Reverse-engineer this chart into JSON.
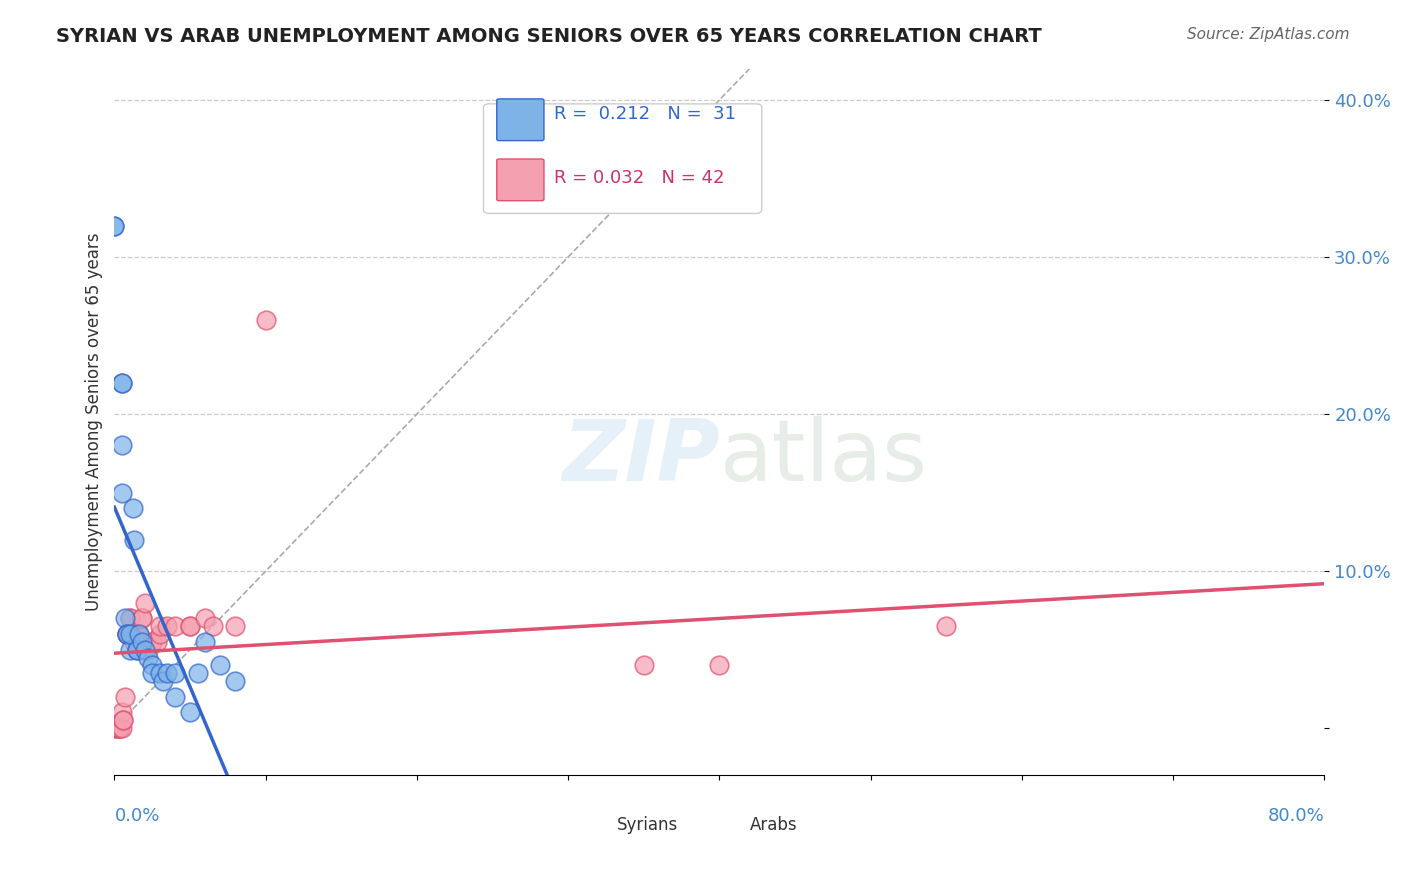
{
  "title": "SYRIAN VS ARAB UNEMPLOYMENT AMONG SENIORS OVER 65 YEARS CORRELATION CHART",
  "source": "Source: ZipAtlas.com",
  "ylabel": "Unemployment Among Seniors over 65 years",
  "ytick_values": [
    0,
    0.1,
    0.2,
    0.3,
    0.4
  ],
  "xlim": [
    0,
    0.8
  ],
  "ylim": [
    -0.03,
    0.42
  ],
  "syrian_R": "0.212",
  "syrian_N": "31",
  "arab_R": "0.032",
  "arab_N": "42",
  "syrian_color": "#7EB3E8",
  "arab_color": "#F4A0B0",
  "syrian_line_color": "#3366CC",
  "arab_line_color": "#E05070",
  "diagonal_color": "#AAAAAA",
  "syrians_x": [
    0.0,
    0.0,
    0.005,
    0.005,
    0.005,
    0.005,
    0.007,
    0.008,
    0.008,
    0.01,
    0.01,
    0.012,
    0.013,
    0.015,
    0.015,
    0.016,
    0.018,
    0.02,
    0.022,
    0.025,
    0.025,
    0.03,
    0.032,
    0.035,
    0.04,
    0.04,
    0.05,
    0.055,
    0.06,
    0.07,
    0.08
  ],
  "syrians_y": [
    0.32,
    0.32,
    0.22,
    0.22,
    0.18,
    0.15,
    0.07,
    0.06,
    0.06,
    0.05,
    0.06,
    0.14,
    0.12,
    0.05,
    0.05,
    0.06,
    0.055,
    0.05,
    0.045,
    0.04,
    0.035,
    0.035,
    0.03,
    0.035,
    0.035,
    0.02,
    0.01,
    0.035,
    0.055,
    0.04,
    0.03
  ],
  "arabs_x": [
    0.0,
    0.0,
    0.002,
    0.003,
    0.003,
    0.004,
    0.005,
    0.005,
    0.006,
    0.006,
    0.007,
    0.008,
    0.008,
    0.009,
    0.01,
    0.01,
    0.012,
    0.013,
    0.015,
    0.015,
    0.016,
    0.017,
    0.018,
    0.018,
    0.02,
    0.022,
    0.025,
    0.025,
    0.028,
    0.03,
    0.03,
    0.035,
    0.04,
    0.05,
    0.05,
    0.06,
    0.065,
    0.08,
    0.1,
    0.35,
    0.4,
    0.55
  ],
  "arabs_y": [
    0.0,
    0.0,
    0.0,
    0.0,
    0.0,
    0.0,
    0.0,
    0.01,
    0.005,
    0.005,
    0.02,
    0.06,
    0.06,
    0.06,
    0.07,
    0.07,
    0.06,
    0.055,
    0.06,
    0.055,
    0.06,
    0.05,
    0.07,
    0.07,
    0.08,
    0.05,
    0.055,
    0.055,
    0.055,
    0.06,
    0.065,
    0.065,
    0.065,
    0.065,
    0.065,
    0.07,
    0.065,
    0.065,
    0.26,
    0.04,
    0.04,
    0.065
  ]
}
